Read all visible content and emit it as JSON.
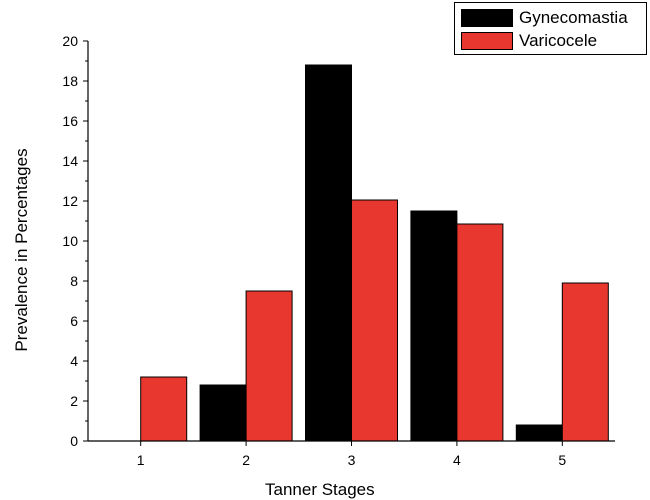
{
  "chart_data": {
    "type": "bar",
    "xlabel": "Tanner Stages",
    "ylabel": "Prevalence in Percentages",
    "categories": [
      "1",
      "2",
      "3",
      "4",
      "5"
    ],
    "series": [
      {
        "name": "Gynecomastia",
        "color": "#000000",
        "values": [
          0,
          2.8,
          18.8,
          11.5,
          0.8
        ]
      },
      {
        "name": "Varicocele",
        "color": "#e8372f",
        "values": [
          3.2,
          7.5,
          12.05,
          10.85,
          7.9
        ]
      }
    ],
    "ylim": [
      0,
      20
    ],
    "yticks": [
      "0",
      "2",
      "4",
      "6",
      "8",
      "10",
      "12",
      "14",
      "16",
      "18",
      "20"
    ],
    "legend_position": "top-right",
    "grid": false
  }
}
